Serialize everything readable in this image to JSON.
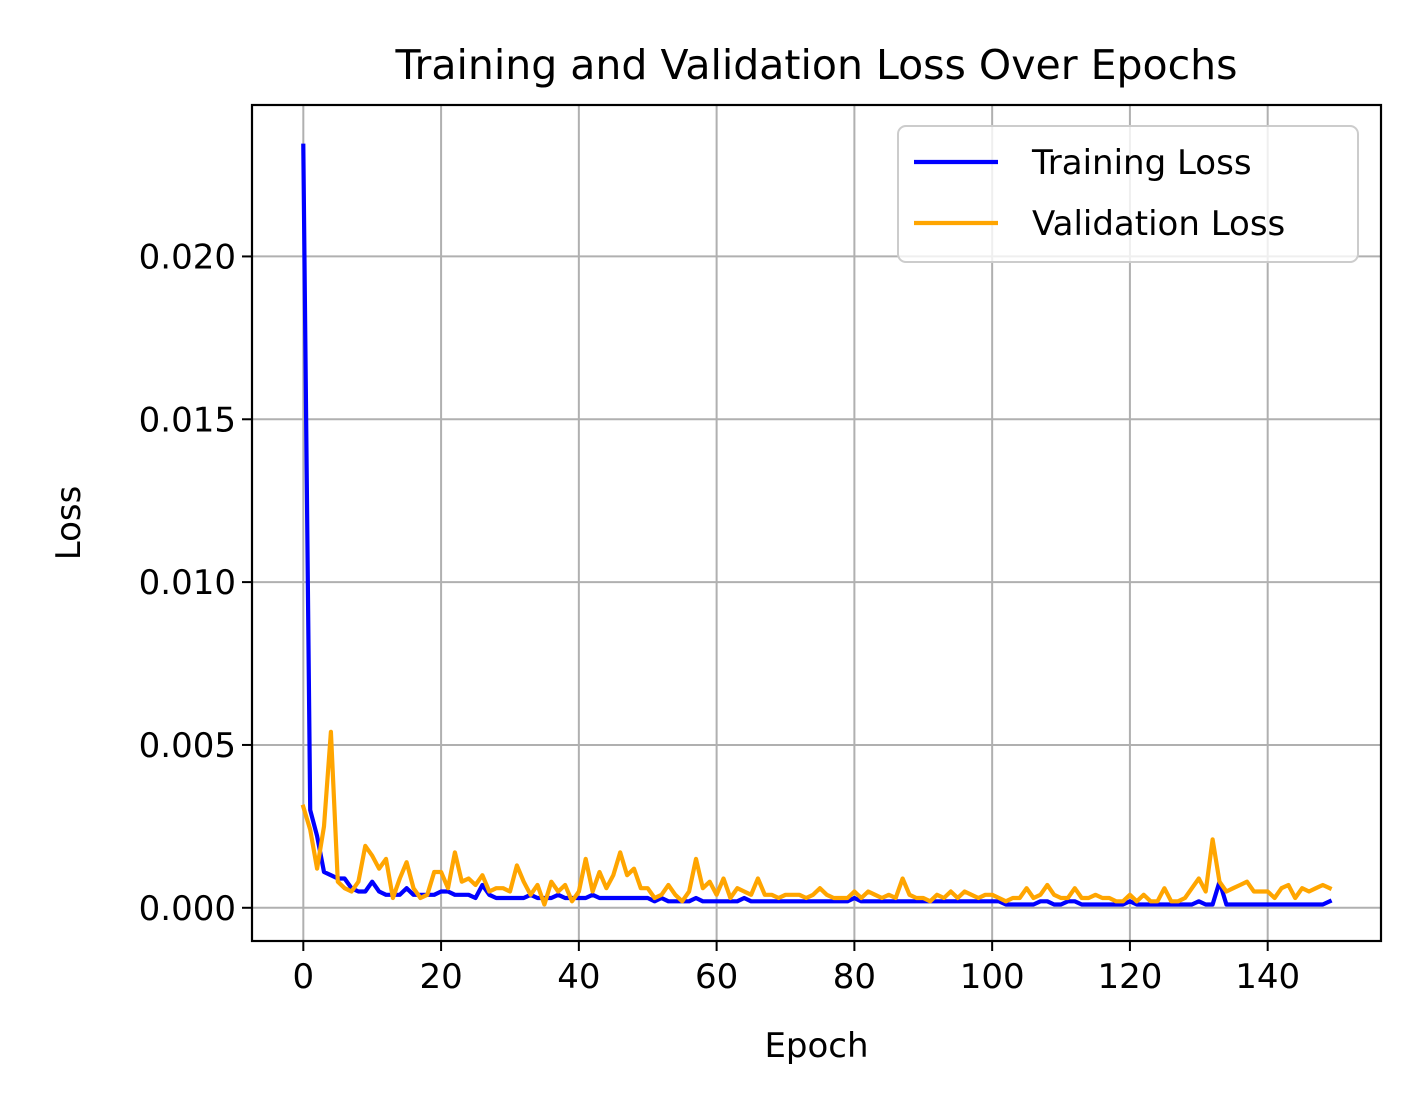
{
  "chart_data": {
    "type": "line",
    "title": "Training and Validation Loss Over Epochs",
    "xlabel": "Epoch",
    "ylabel": "Loss",
    "xlim": [
      -7.45,
      156.45
    ],
    "ylim": [
      -0.00102,
      0.02465
    ],
    "xticks": [
      0,
      20,
      40,
      60,
      80,
      100,
      120,
      140
    ],
    "xtick_labels": [
      "0",
      "20",
      "40",
      "60",
      "80",
      "100",
      "120",
      "140"
    ],
    "yticks": [
      0.0,
      0.005,
      0.01,
      0.015,
      0.02
    ],
    "ytick_labels": [
      "0.000",
      "0.005",
      "0.010",
      "0.015",
      "0.020"
    ],
    "grid": true,
    "legend_position": "top-right",
    "x": [
      0,
      1,
      2,
      3,
      4,
      5,
      6,
      7,
      8,
      9,
      10,
      11,
      12,
      13,
      14,
      15,
      16,
      17,
      18,
      19,
      20,
      21,
      22,
      23,
      24,
      25,
      26,
      27,
      28,
      29,
      30,
      31,
      32,
      33,
      34,
      35,
      36,
      37,
      38,
      39,
      40,
      41,
      42,
      43,
      44,
      45,
      46,
      47,
      48,
      49,
      50,
      51,
      52,
      53,
      54,
      55,
      56,
      57,
      58,
      59,
      60,
      61,
      62,
      63,
      64,
      65,
      66,
      67,
      68,
      69,
      70,
      71,
      72,
      73,
      74,
      75,
      76,
      77,
      78,
      79,
      80,
      81,
      82,
      83,
      84,
      85,
      86,
      87,
      88,
      89,
      90,
      91,
      92,
      93,
      94,
      95,
      96,
      97,
      98,
      99,
      100,
      101,
      102,
      103,
      104,
      105,
      106,
      107,
      108,
      109,
      110,
      111,
      112,
      113,
      114,
      115,
      116,
      117,
      118,
      119,
      120,
      121,
      122,
      123,
      124,
      125,
      126,
      127,
      128,
      129,
      130,
      131,
      132,
      133,
      134,
      135,
      136,
      137,
      138,
      139,
      140,
      141,
      142,
      143,
      144,
      145,
      146,
      147,
      148,
      149
    ],
    "series": [
      {
        "name": "Training Loss",
        "color": "#0000ff",
        "values": [
          0.0234,
          0.003,
          0.0022,
          0.0011,
          0.001,
          0.0009,
          0.0009,
          0.0006,
          0.0005,
          0.0005,
          0.0008,
          0.0005,
          0.0004,
          0.0004,
          0.0004,
          0.0006,
          0.0004,
          0.0004,
          0.0004,
          0.0004,
          0.0005,
          0.0005,
          0.0004,
          0.0004,
          0.0004,
          0.0003,
          0.0007,
          0.0004,
          0.0003,
          0.0003,
          0.0003,
          0.0003,
          0.0003,
          0.0004,
          0.0003,
          0.0003,
          0.0003,
          0.0004,
          0.0003,
          0.0003,
          0.0003,
          0.0003,
          0.0004,
          0.0003,
          0.0003,
          0.0003,
          0.0003,
          0.0003,
          0.0003,
          0.0003,
          0.0003,
          0.0002,
          0.0003,
          0.0002,
          0.0002,
          0.0002,
          0.0002,
          0.0003,
          0.0002,
          0.0002,
          0.0002,
          0.0002,
          0.0002,
          0.0002,
          0.0003,
          0.0002,
          0.0002,
          0.0002,
          0.0002,
          0.0002,
          0.0002,
          0.0002,
          0.0002,
          0.0002,
          0.0002,
          0.0002,
          0.0002,
          0.0002,
          0.0002,
          0.0002,
          0.0003,
          0.0002,
          0.0002,
          0.0002,
          0.0002,
          0.0002,
          0.0002,
          0.0002,
          0.0002,
          0.0002,
          0.0002,
          0.0002,
          0.0002,
          0.0002,
          0.0002,
          0.0002,
          0.0002,
          0.0002,
          0.0002,
          0.0002,
          0.0002,
          0.0002,
          0.0001,
          0.0001,
          0.0001,
          0.0001,
          0.0001,
          0.0002,
          0.0002,
          0.0001,
          0.0001,
          0.0002,
          0.0002,
          0.0001,
          0.0001,
          0.0001,
          0.0001,
          0.0001,
          0.0001,
          0.0001,
          0.0002,
          0.0001,
          0.0001,
          0.0001,
          0.0001,
          0.0001,
          0.0001,
          0.0001,
          0.0001,
          0.0001,
          0.0002,
          0.0001,
          0.0001,
          0.0008,
          0.0001,
          0.0001,
          0.0001,
          0.0001,
          0.0001,
          0.0001,
          0.0001,
          0.0001,
          0.0001,
          0.0001,
          0.0001,
          0.0001,
          0.0001,
          0.0001,
          0.0001,
          0.0002
        ]
      },
      {
        "name": "Validation Loss",
        "color": "#ffa500",
        "values": [
          0.0031,
          0.0024,
          0.0012,
          0.0025,
          0.0054,
          0.0008,
          0.0006,
          0.0005,
          0.0008,
          0.0019,
          0.0016,
          0.0012,
          0.0015,
          0.0003,
          0.0009,
          0.0014,
          0.0006,
          0.0003,
          0.0004,
          0.0011,
          0.0011,
          0.0006,
          0.0017,
          0.0008,
          0.0009,
          0.0007,
          0.001,
          0.0005,
          0.0006,
          0.0006,
          0.0005,
          0.0013,
          0.0008,
          0.0004,
          0.0007,
          0.0001,
          0.0008,
          0.0005,
          0.0007,
          0.0002,
          0.0005,
          0.0015,
          0.0005,
          0.0011,
          0.0006,
          0.001,
          0.0017,
          0.001,
          0.0012,
          0.0006,
          0.0006,
          0.0003,
          0.0004,
          0.0007,
          0.0004,
          0.0002,
          0.0005,
          0.0015,
          0.0006,
          0.0008,
          0.0004,
          0.0009,
          0.0003,
          0.0006,
          0.0005,
          0.0004,
          0.0009,
          0.0004,
          0.0004,
          0.0003,
          0.0004,
          0.0004,
          0.0004,
          0.0003,
          0.0004,
          0.0006,
          0.0004,
          0.0003,
          0.0003,
          0.0003,
          0.0005,
          0.0003,
          0.0005,
          0.0004,
          0.0003,
          0.0004,
          0.0003,
          0.0009,
          0.0004,
          0.0003,
          0.0003,
          0.0002,
          0.0004,
          0.0003,
          0.0005,
          0.0003,
          0.0005,
          0.0004,
          0.0003,
          0.0004,
          0.0004,
          0.0003,
          0.0002,
          0.0003,
          0.0003,
          0.0006,
          0.0003,
          0.0004,
          0.0007,
          0.0004,
          0.0003,
          0.0003,
          0.0006,
          0.0003,
          0.0003,
          0.0004,
          0.0003,
          0.0003,
          0.0002,
          0.0002,
          0.0004,
          0.0002,
          0.0004,
          0.0002,
          0.0002,
          0.0006,
          0.0002,
          0.0002,
          0.0003,
          0.0006,
          0.0009,
          0.0005,
          0.0021,
          0.0008,
          0.0005,
          0.0006,
          0.0007,
          0.0008,
          0.0005,
          0.0005,
          0.0005,
          0.0003,
          0.0006,
          0.0007,
          0.0003,
          0.0006,
          0.0005,
          0.0006,
          0.0007,
          0.0006
        ]
      }
    ]
  }
}
